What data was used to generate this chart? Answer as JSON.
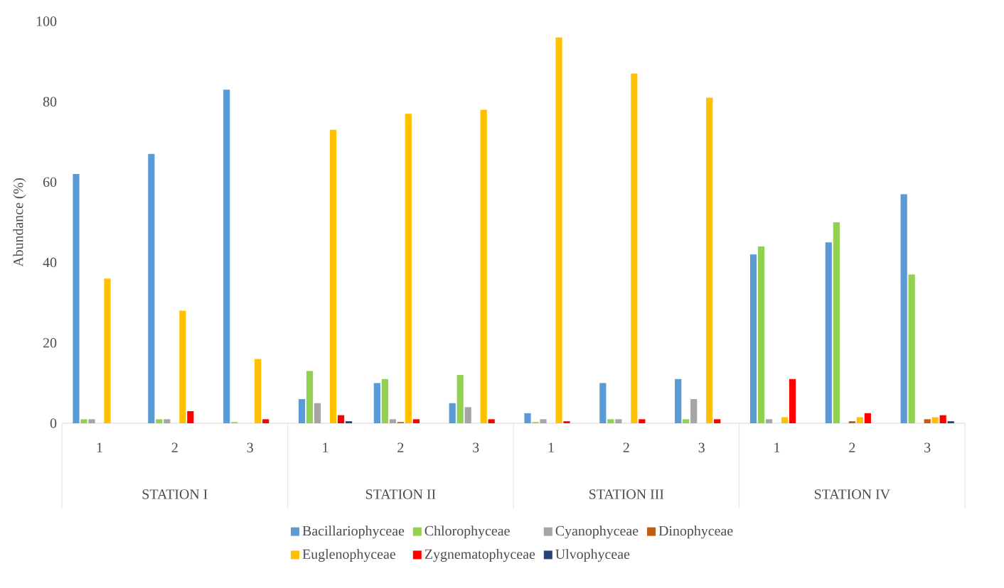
{
  "chart_data": {
    "type": "bar",
    "ylabel": "Abundance (%)",
    "categories": [
      "1",
      "2",
      "3",
      "1",
      "2",
      "3",
      "1",
      "2",
      "3",
      "1",
      "2",
      "3"
    ],
    "annotations": [
      "STATION I",
      "STATION II",
      "STATION III",
      "STATION IV"
    ],
    "ylim": [
      0,
      100
    ],
    "yticks": [
      0,
      20,
      40,
      60,
      80,
      100
    ],
    "legend": "bottom",
    "series": [
      {
        "name": "Bacillariophyceae",
        "color": "#5b9bd5",
        "values": [
          62,
          67,
          83,
          6,
          10,
          5,
          2.5,
          10,
          11,
          42,
          45,
          57
        ]
      },
      {
        "name": "Chlorophyceae",
        "color": "#92d050",
        "values": [
          1,
          1,
          0.3,
          13,
          11,
          12,
          0.3,
          1,
          1,
          44,
          50,
          37
        ]
      },
      {
        "name": "Cyanophyceae",
        "color": "#a5a5a5",
        "values": [
          1,
          1,
          0,
          5,
          1,
          4,
          1,
          1,
          6,
          1,
          0,
          0
        ]
      },
      {
        "name": "Dinophyceae",
        "color": "#c55a11",
        "values": [
          0,
          0,
          0,
          0,
          0.3,
          0,
          0,
          0,
          0,
          0,
          0.5,
          1
        ]
      },
      {
        "name": "Euglenophyceae",
        "color": "#ffc000",
        "values": [
          36,
          28,
          16,
          73,
          77,
          78,
          96,
          87,
          81,
          1.5,
          1.5,
          1.5
        ]
      },
      {
        "name": "Zygnematophyceae",
        "color": "#ff0000",
        "values": [
          0,
          3,
          1,
          2,
          1,
          1,
          0.5,
          1,
          1,
          11,
          2.5,
          2
        ]
      },
      {
        "name": "Ulvophyceae",
        "color": "#264478",
        "values": [
          0,
          0,
          0,
          0.5,
          0,
          0,
          0,
          0,
          0,
          0,
          0,
          0.5
        ]
      }
    ]
  }
}
